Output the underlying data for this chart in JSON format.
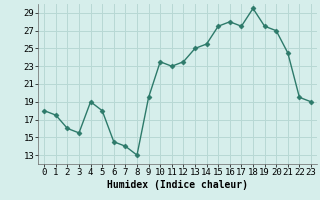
{
  "x": [
    0,
    1,
    2,
    3,
    4,
    5,
    6,
    7,
    8,
    9,
    10,
    11,
    12,
    13,
    14,
    15,
    16,
    17,
    18,
    19,
    20,
    21,
    22,
    23
  ],
  "y": [
    18,
    17.5,
    16,
    15.5,
    19,
    18,
    14.5,
    14,
    13,
    19.5,
    23.5,
    23,
    23.5,
    25,
    25.5,
    27.5,
    28,
    27.5,
    29.5,
    27.5,
    27,
    24.5,
    19.5,
    19
  ],
  "line_color": "#2d7a6a",
  "marker": "D",
  "marker_size": 2.5,
  "bg_color": "#d6eeeb",
  "grid_color": "#b8d8d4",
  "xlabel": "Humidex (Indice chaleur)",
  "ylim": [
    12,
    30
  ],
  "xlim": [
    -0.5,
    23.5
  ],
  "yticks": [
    13,
    15,
    17,
    19,
    21,
    23,
    25,
    27,
    29
  ],
  "xticks": [
    0,
    1,
    2,
    3,
    4,
    5,
    6,
    7,
    8,
    9,
    10,
    11,
    12,
    13,
    14,
    15,
    16,
    17,
    18,
    19,
    20,
    21,
    22,
    23
  ],
  "xlabel_fontsize": 7,
  "tick_fontsize": 6.5
}
